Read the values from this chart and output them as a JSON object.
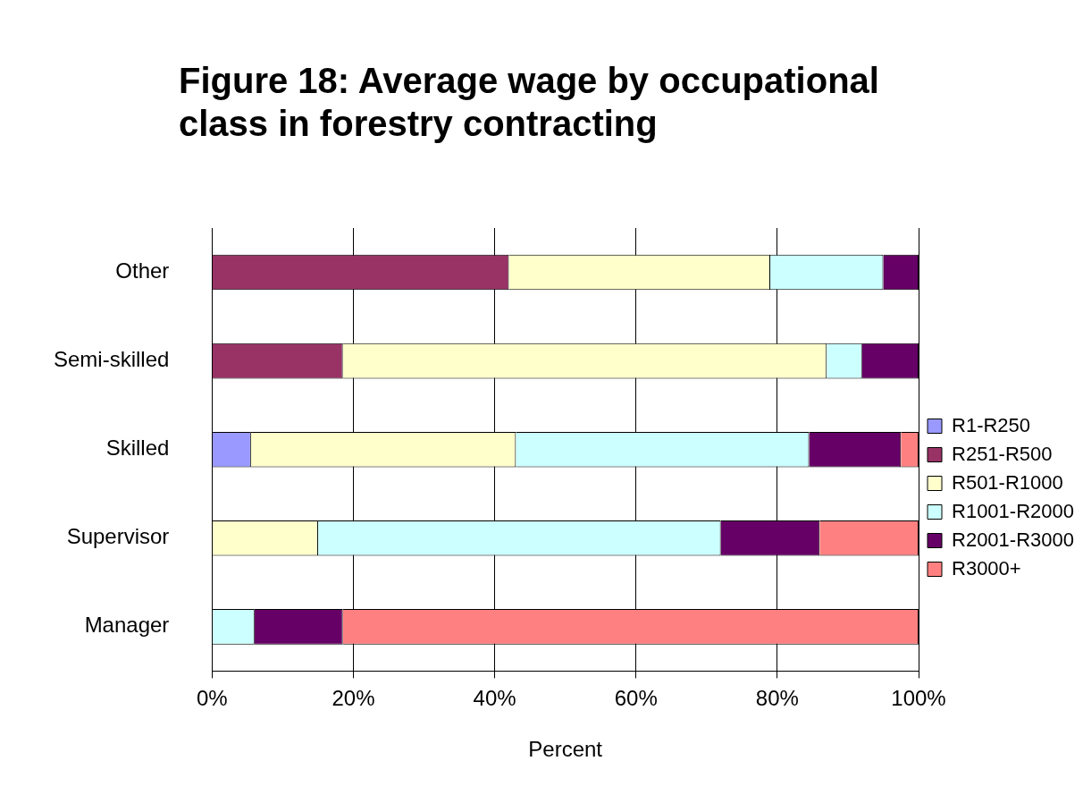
{
  "chart_data": {
    "type": "bar",
    "orientation": "horizontal",
    "stacked": true,
    "title": "Figure 18: Average wage by occupational class in forestry contracting",
    "xlabel": "Percent",
    "categories": [
      "Other",
      "Semi-skilled",
      "Skilled",
      "Supervisor",
      "Manager"
    ],
    "series": [
      {
        "name": "R1-R250",
        "color": "#9999ff",
        "values": [
          null,
          null,
          5.5,
          null,
          null
        ]
      },
      {
        "name": "R251-R500",
        "color": "#993366",
        "values": [
          42,
          18.5,
          null,
          null,
          null
        ]
      },
      {
        "name": "R501-R1000",
        "color": "#ffffcc",
        "values": [
          37,
          68.5,
          37.5,
          15,
          null
        ]
      },
      {
        "name": "R1001-R2000",
        "color": "#ccffff",
        "values": [
          16,
          5,
          41.5,
          57,
          6
        ]
      },
      {
        "name": "R2001-R3000",
        "color": "#660066",
        "values": [
          5,
          8,
          13,
          14,
          12.5
        ]
      },
      {
        "name": "R3000+",
        "color": "#ff8080",
        "values": [
          null,
          null,
          2.5,
          14,
          81.5
        ]
      }
    ],
    "xlim": [
      0,
      100
    ],
    "xticks": [
      {
        "value": 0,
        "label": "0%"
      },
      {
        "value": 20,
        "label": "20%"
      },
      {
        "value": 40,
        "label": "40%"
      },
      {
        "value": 60,
        "label": "60%"
      },
      {
        "value": 80,
        "label": "80%"
      },
      {
        "value": 100,
        "label": "100%"
      }
    ],
    "grid": "x",
    "legend": "right"
  }
}
